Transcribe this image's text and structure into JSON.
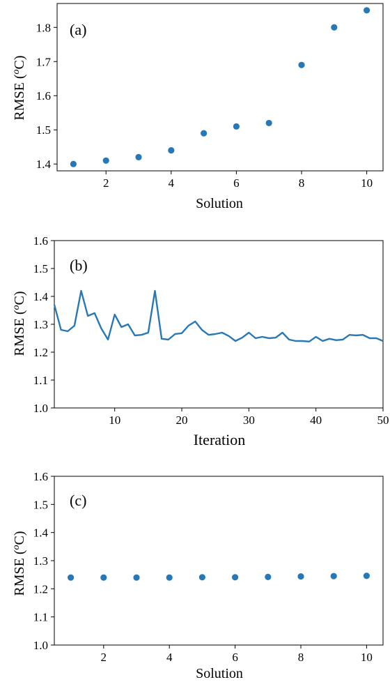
{
  "chart_data": [
    {
      "type": "scatter",
      "panel_label": "(a)",
      "xlabel": "Solution",
      "ylabel_prefix": "RMSE (",
      "ylabel_sup": "o",
      "ylabel_suffix": "C)",
      "x": [
        1,
        2,
        3,
        4,
        5,
        6,
        7,
        8,
        9,
        10
      ],
      "y": [
        1.4,
        1.41,
        1.42,
        1.44,
        1.49,
        1.51,
        1.52,
        1.69,
        1.8,
        1.85
      ],
      "xlim": [
        0.5,
        10.5
      ],
      "ylim": [
        1.38,
        1.87
      ],
      "xticks": [
        2,
        4,
        6,
        8,
        10
      ],
      "xtick_labels": [
        "2",
        "4",
        "6",
        "8",
        "10"
      ],
      "yticks": [
        1.4,
        1.5,
        1.6,
        1.7,
        1.8
      ],
      "ytick_labels": [
        "1.4",
        "1.5",
        "1.6",
        "1.7",
        "1.8"
      ],
      "color": "#2878b5",
      "grid": false
    },
    {
      "type": "line",
      "panel_label": "(b)",
      "xlabel": "Iteration",
      "ylabel_prefix": "RMSE (",
      "ylabel_sup": "o",
      "ylabel_suffix": "C)",
      "x": [
        1,
        2,
        3,
        4,
        5,
        6,
        7,
        8,
        9,
        10,
        11,
        12,
        13,
        14,
        15,
        16,
        17,
        18,
        19,
        20,
        21,
        22,
        23,
        24,
        25,
        26,
        27,
        28,
        29,
        30,
        31,
        32,
        33,
        34,
        35,
        36,
        37,
        38,
        39,
        40,
        41,
        42,
        43,
        44,
        45,
        46,
        47,
        48,
        49,
        50
      ],
      "y": [
        1.37,
        1.28,
        1.275,
        1.295,
        1.42,
        1.33,
        1.34,
        1.285,
        1.245,
        1.335,
        1.29,
        1.3,
        1.26,
        1.262,
        1.27,
        1.42,
        1.248,
        1.245,
        1.265,
        1.268,
        1.295,
        1.31,
        1.28,
        1.262,
        1.265,
        1.27,
        1.258,
        1.24,
        1.252,
        1.27,
        1.25,
        1.255,
        1.25,
        1.252,
        1.27,
        1.245,
        1.24,
        1.24,
        1.238,
        1.255,
        1.24,
        1.248,
        1.243,
        1.245,
        1.262,
        1.26,
        1.262,
        1.25,
        1.25,
        1.24
      ],
      "xlim": [
        1,
        50
      ],
      "ylim": [
        1.0,
        1.6
      ],
      "xticks": [
        10,
        20,
        30,
        40,
        50
      ],
      "xtick_labels": [
        "10",
        "20",
        "30",
        "40",
        "50"
      ],
      "yticks": [
        1.0,
        1.1,
        1.2,
        1.3,
        1.4,
        1.5,
        1.6
      ],
      "ytick_labels": [
        "1.0",
        "1.1",
        "1.2",
        "1.3",
        "1.4",
        "1.5",
        "1.6"
      ],
      "color": "#2878b5",
      "grid": false
    },
    {
      "type": "scatter",
      "panel_label": "(c)",
      "xlabel": "Solution",
      "ylabel_prefix": "RMSE (",
      "ylabel_sup": "o",
      "ylabel_suffix": "C)",
      "x": [
        1,
        2,
        3,
        4,
        5,
        6,
        7,
        8,
        9,
        10
      ],
      "y": [
        1.24,
        1.24,
        1.24,
        1.24,
        1.241,
        1.241,
        1.242,
        1.244,
        1.245,
        1.246
      ],
      "xlim": [
        0.5,
        10.5
      ],
      "ylim": [
        1.0,
        1.6
      ],
      "xticks": [
        2,
        4,
        6,
        8,
        10
      ],
      "xtick_labels": [
        "2",
        "4",
        "6",
        "8",
        "10"
      ],
      "yticks": [
        1.0,
        1.1,
        1.2,
        1.3,
        1.4,
        1.5,
        1.6
      ],
      "ytick_labels": [
        "1.0",
        "1.1",
        "1.2",
        "1.3",
        "1.4",
        "1.5",
        "1.6"
      ],
      "color": "#2878b5",
      "grid": false
    }
  ]
}
